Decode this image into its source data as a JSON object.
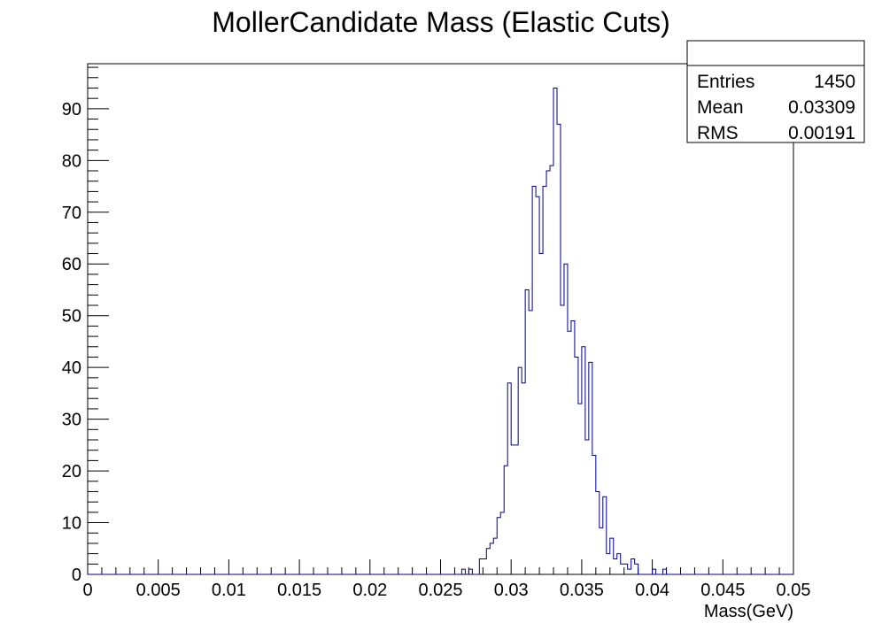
{
  "chart_data": {
    "type": "histogram",
    "title": "MollerCandidate Mass (Elastic Cuts)",
    "xlabel": "Mass(GeV)",
    "ylabel": "",
    "xlim": [
      0,
      0.05
    ],
    "ylim": [
      0,
      98.7
    ],
    "grid": false,
    "x_tick_labels": [
      "0",
      "0.005",
      "0.01",
      "0.015",
      "0.02",
      "0.025",
      "0.03",
      "0.035",
      "0.04",
      "0.045",
      "0.05"
    ],
    "y_tick_labels": [
      "0",
      "10",
      "20",
      "30",
      "40",
      "50",
      "60",
      "70",
      "80",
      "90"
    ],
    "bin_width": 0.00025,
    "bin_start": 0.0265,
    "counts": [
      1,
      0,
      1,
      0,
      0,
      3,
      3,
      5,
      6,
      7,
      11,
      12,
      21,
      37,
      25,
      25,
      40,
      37,
      55,
      51,
      75,
      73,
      62,
      75,
      78,
      79,
      94,
      87,
      52,
      60,
      47,
      49,
      42,
      33,
      44,
      26,
      41,
      23,
      16,
      9,
      15,
      4,
      7,
      3,
      4,
      2,
      2,
      1,
      3,
      2,
      0,
      0,
      0,
      0,
      1,
      0,
      0,
      1
    ],
    "line_color": "#00007f",
    "stats_box": {
      "entries_label": "Entries",
      "entries_value": "1450",
      "mean_label": "Mean",
      "mean_value": "0.03309",
      "rms_label": "RMS",
      "rms_value": "0.00191"
    }
  }
}
